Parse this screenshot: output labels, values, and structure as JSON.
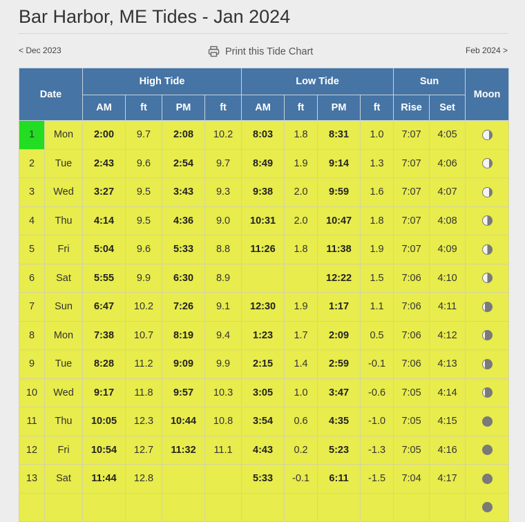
{
  "page": {
    "title": "Bar Harbor, ME Tides - Jan 2024",
    "prev_link": "< Dec 2023",
    "next_link": "Feb 2024 >",
    "print_label": "Print this Tide Chart"
  },
  "colors": {
    "header_bg": "#4674a4",
    "row_bg": "#e8ec4c",
    "today_bg": "#22dd22"
  },
  "table": {
    "headers": {
      "date": "Date",
      "high_tide": "High Tide",
      "low_tide": "Low Tide",
      "sun": "Sun",
      "moon": "Moon",
      "am": "AM",
      "ft": "ft",
      "pm": "PM",
      "rise": "Rise",
      "set": "Set"
    },
    "rows": [
      {
        "day": "1",
        "dow": "Mon",
        "h_am": "2:00",
        "h_am_ft": "9.7",
        "h_pm": "2:08",
        "h_pm_ft": "10.2",
        "l_am": "8:03",
        "l_am_ft": "1.8",
        "l_pm": "8:31",
        "l_pm_ft": "1.0",
        "rise": "7:07",
        "set": "4:05",
        "moon_phase": "waning-gibbous"
      },
      {
        "day": "2",
        "dow": "Tue",
        "h_am": "2:43",
        "h_am_ft": "9.6",
        "h_pm": "2:54",
        "h_pm_ft": "9.7",
        "l_am": "8:49",
        "l_am_ft": "1.9",
        "l_pm": "9:14",
        "l_pm_ft": "1.3",
        "rise": "7:07",
        "set": "4:06",
        "moon_phase": "waning-gibbous"
      },
      {
        "day": "3",
        "dow": "Wed",
        "h_am": "3:27",
        "h_am_ft": "9.5",
        "h_pm": "3:43",
        "h_pm_ft": "9.3",
        "l_am": "9:38",
        "l_am_ft": "2.0",
        "l_pm": "9:59",
        "l_pm_ft": "1.6",
        "rise": "7:07",
        "set": "4:07",
        "moon_phase": "waning-gibbous"
      },
      {
        "day": "4",
        "dow": "Thu",
        "h_am": "4:14",
        "h_am_ft": "9.5",
        "h_pm": "4:36",
        "h_pm_ft": "9.0",
        "l_am": "10:31",
        "l_am_ft": "2.0",
        "l_pm": "10:47",
        "l_pm_ft": "1.8",
        "rise": "7:07",
        "set": "4:08",
        "moon_phase": "last-quarter"
      },
      {
        "day": "5",
        "dow": "Fri",
        "h_am": "5:04",
        "h_am_ft": "9.6",
        "h_pm": "5:33",
        "h_pm_ft": "8.8",
        "l_am": "11:26",
        "l_am_ft": "1.8",
        "l_pm": "11:38",
        "l_pm_ft": "1.9",
        "rise": "7:07",
        "set": "4:09",
        "moon_phase": "last-quarter"
      },
      {
        "day": "6",
        "dow": "Sat",
        "h_am": "5:55",
        "h_am_ft": "9.9",
        "h_pm": "6:30",
        "h_pm_ft": "8.9",
        "l_am": "",
        "l_am_ft": "",
        "l_pm": "12:22",
        "l_pm_ft": "1.5",
        "rise": "7:06",
        "set": "4:10",
        "moon_phase": "last-quarter"
      },
      {
        "day": "7",
        "dow": "Sun",
        "h_am": "6:47",
        "h_am_ft": "10.2",
        "h_pm": "7:26",
        "h_pm_ft": "9.1",
        "l_am": "12:30",
        "l_am_ft": "1.9",
        "l_pm": "1:17",
        "l_pm_ft": "1.1",
        "rise": "7:06",
        "set": "4:11",
        "moon_phase": "waning-crescent"
      },
      {
        "day": "8",
        "dow": "Mon",
        "h_am": "7:38",
        "h_am_ft": "10.7",
        "h_pm": "8:19",
        "h_pm_ft": "9.4",
        "l_am": "1:23",
        "l_am_ft": "1.7",
        "l_pm": "2:09",
        "l_pm_ft": "0.5",
        "rise": "7:06",
        "set": "4:12",
        "moon_phase": "waning-crescent"
      },
      {
        "day": "9",
        "dow": "Tue",
        "h_am": "8:28",
        "h_am_ft": "11.2",
        "h_pm": "9:09",
        "h_pm_ft": "9.9",
        "l_am": "2:15",
        "l_am_ft": "1.4",
        "l_pm": "2:59",
        "l_pm_ft": "-0.1",
        "rise": "7:06",
        "set": "4:13",
        "moon_phase": "waning-crescent"
      },
      {
        "day": "10",
        "dow": "Wed",
        "h_am": "9:17",
        "h_am_ft": "11.8",
        "h_pm": "9:57",
        "h_pm_ft": "10.3",
        "l_am": "3:05",
        "l_am_ft": "1.0",
        "l_pm": "3:47",
        "l_pm_ft": "-0.6",
        "rise": "7:05",
        "set": "4:14",
        "moon_phase": "waning-crescent"
      },
      {
        "day": "11",
        "dow": "Thu",
        "h_am": "10:05",
        "h_am_ft": "12.3",
        "h_pm": "10:44",
        "h_pm_ft": "10.8",
        "l_am": "3:54",
        "l_am_ft": "0.6",
        "l_pm": "4:35",
        "l_pm_ft": "-1.0",
        "rise": "7:05",
        "set": "4:15",
        "moon_phase": "new-moon"
      },
      {
        "day": "12",
        "dow": "Fri",
        "h_am": "10:54",
        "h_am_ft": "12.7",
        "h_pm": "11:32",
        "h_pm_ft": "11.1",
        "l_am": "4:43",
        "l_am_ft": "0.2",
        "l_pm": "5:23",
        "l_pm_ft": "-1.3",
        "rise": "7:05",
        "set": "4:16",
        "moon_phase": "new-moon"
      },
      {
        "day": "13",
        "dow": "Sat",
        "h_am": "11:44",
        "h_am_ft": "12.8",
        "h_pm": "",
        "h_pm_ft": "",
        "l_am": "5:33",
        "l_am_ft": "-0.1",
        "l_pm": "6:11",
        "l_pm_ft": "-1.5",
        "rise": "7:04",
        "set": "4:17",
        "moon_phase": "new-moon"
      },
      {
        "day": "",
        "dow": "",
        "h_am": "",
        "h_am_ft": "",
        "h_pm": "",
        "h_pm_ft": "",
        "l_am": "",
        "l_am_ft": "",
        "l_pm": "",
        "l_pm_ft": "",
        "rise": "",
        "set": "",
        "moon_phase": "new-moon"
      }
    ]
  }
}
